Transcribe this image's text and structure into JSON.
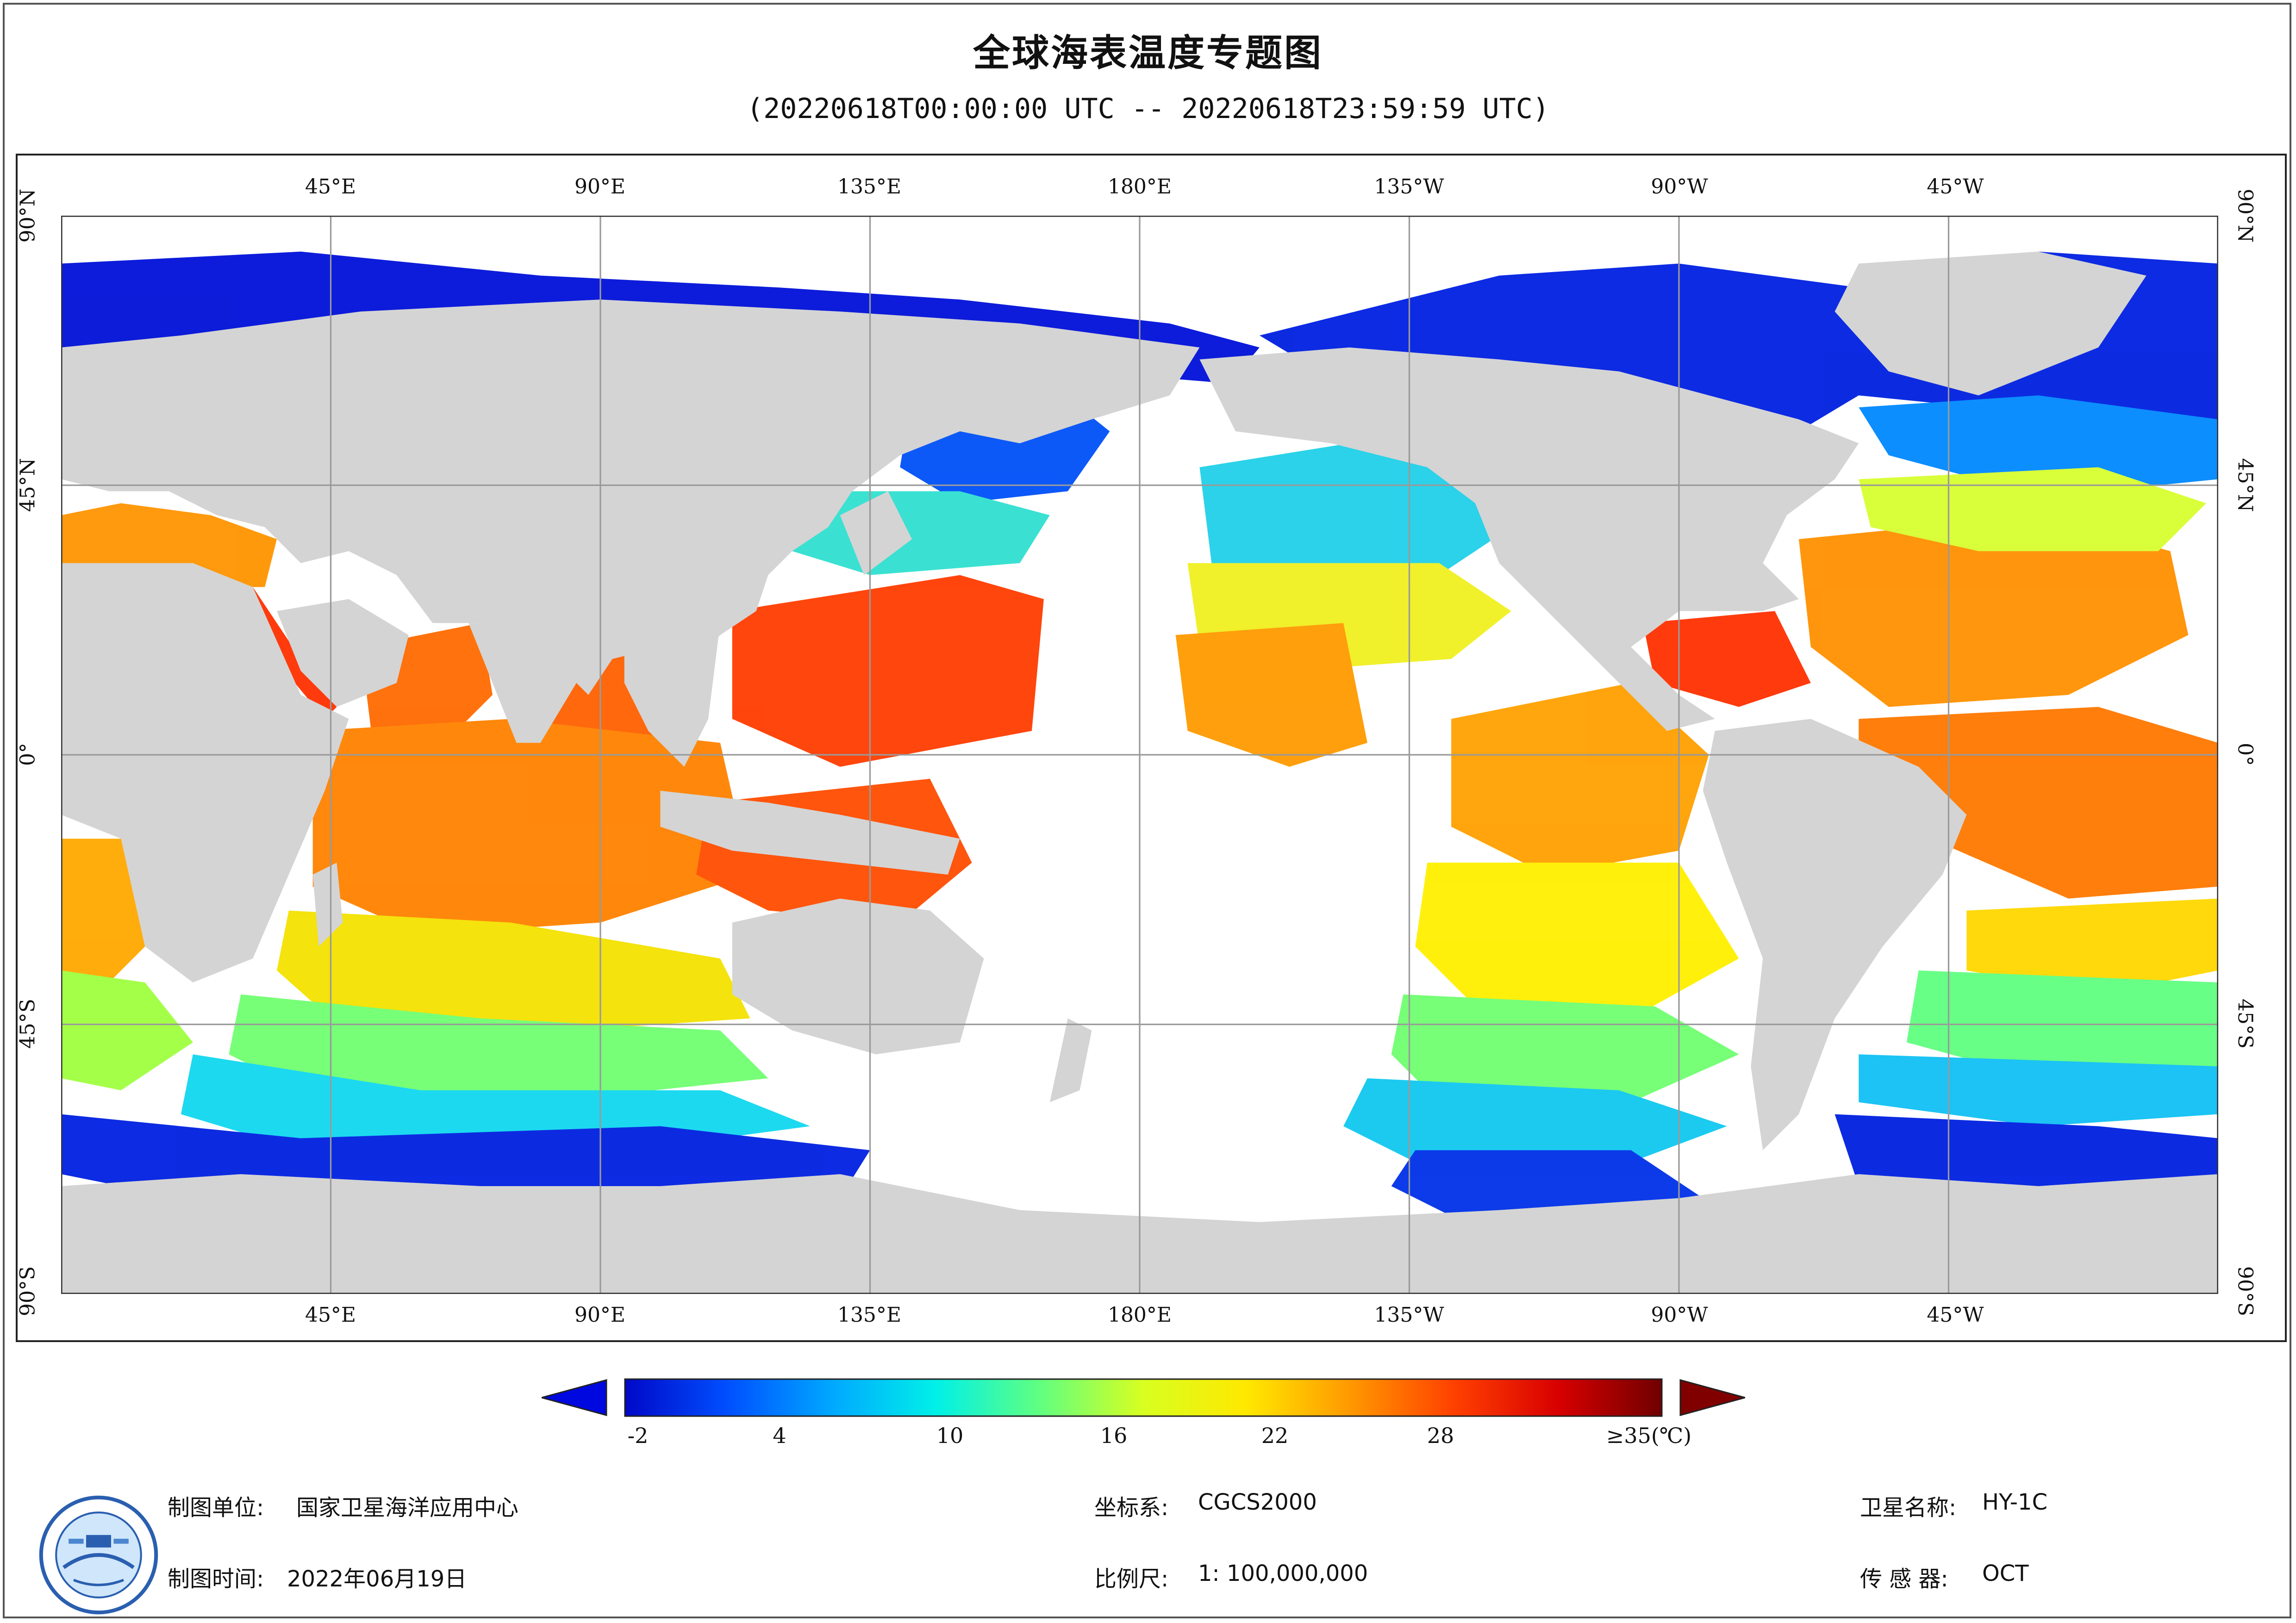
{
  "header": {
    "title": "全球海表温度专题图",
    "subtitle": "(20220618T00:00:00 UTC -- 20220618T23:59:59 UTC)"
  },
  "map": {
    "lon_ticks": [
      "45°E",
      "90°E",
      "135°E",
      "180°E",
      "135°W",
      "90°W",
      "45°W"
    ],
    "lat_ticks": [
      "90°N",
      "45°N",
      "0°",
      "45°S",
      "90°S"
    ],
    "colors": {
      "land": "#d4d4d4",
      "ocean_cloud": "#ffffff",
      "grid": "#9a9a9a"
    }
  },
  "colorbar": {
    "labels": [
      "-2",
      "4",
      "10",
      "16",
      "22",
      "28",
      "≥35(℃)"
    ],
    "min": -2,
    "max": 35,
    "colors": [
      "#0008c8",
      "#0050ff",
      "#00a8ff",
      "#00f0e8",
      "#60ff80",
      "#d8ff20",
      "#ffe800",
      "#ff9800",
      "#ff4000",
      "#d80000",
      "#700000"
    ]
  },
  "footer": {
    "org_label": "制图单位:",
    "org_value": "国家卫星海洋应用中心",
    "time_label": "制图时间:",
    "time_value": "2022年06月19日",
    "crs_label": "坐标系:",
    "crs_value": "CGCS2000",
    "scale_label": "比例尺:",
    "scale_value": "1: 100,000,000",
    "sat_label": "卫星名称:",
    "sat_value": "HY-1C",
    "sensor_label": "传 感 器:",
    "sensor_value": "OCT"
  }
}
